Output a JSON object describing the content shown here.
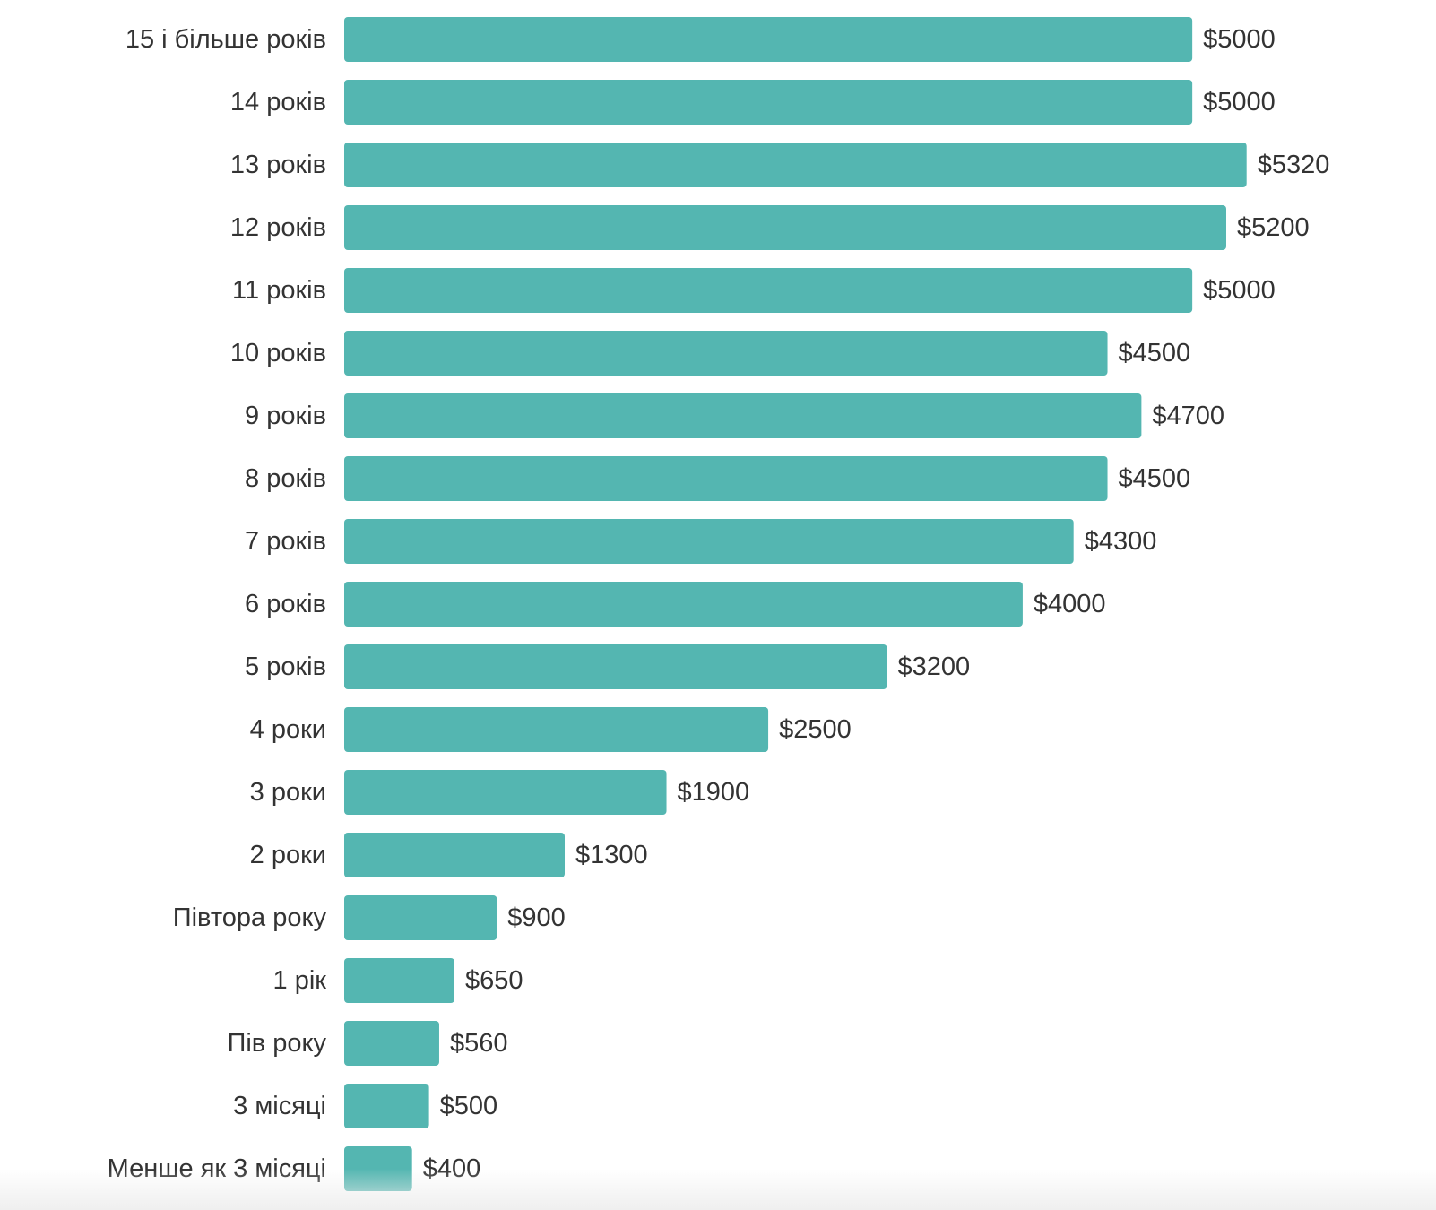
{
  "chart_data": {
    "type": "bar",
    "orientation": "horizontal",
    "categories": [
      "15 і більше років",
      "14 років",
      "13 років",
      "12 років",
      "11 років",
      "10 років",
      "9 років",
      "8 років",
      "7 років",
      "6 років",
      "5 років",
      "4 роки",
      "3 роки",
      "2 роки",
      "Півтора року",
      "1 рік",
      "Пів року",
      "3 місяці",
      "Менше як 3 місяці"
    ],
    "values": [
      5000,
      5000,
      5320,
      5200,
      5000,
      4500,
      4700,
      4500,
      4300,
      4000,
      3200,
      2500,
      1900,
      1300,
      900,
      650,
      560,
      500,
      400
    ],
    "value_labels": [
      "$5000",
      "$5000",
      "$5320",
      "$5200",
      "$5000",
      "$4500",
      "$4700",
      "$4500",
      "$4300",
      "$4000",
      "$3200",
      "$2500",
      "$1900",
      "$1300",
      "$900",
      "$650",
      "$560",
      "$500",
      "$400"
    ],
    "xlim": [
      0,
      5320
    ],
    "grid": false,
    "legend": "none",
    "bar_color": "#54b6b1",
    "text_color": "#333333"
  }
}
